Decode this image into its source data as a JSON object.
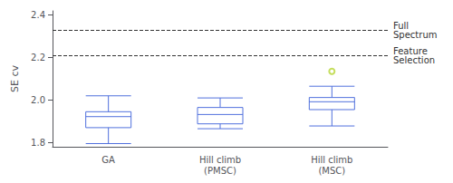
{
  "chart_data": {
    "type": "boxplot",
    "categories": [
      "GA",
      "Hill climb\n(PMSC)",
      "Hill climb\n(MSC)"
    ],
    "values": [
      [
        1.795,
        1.87,
        1.922,
        1.945,
        2.02
      ],
      [
        1.865,
        1.888,
        1.932,
        1.965,
        2.01
      ],
      [
        1.878,
        1.955,
        1.992,
        2.012,
        2.065
      ]
    ],
    "fliers": [
      [],
      [],
      [
        2.135
      ]
    ],
    "ylabel": "SE cv",
    "ylim": [
      1.78,
      2.42
    ],
    "yticks": [
      1.8,
      {
        "value": 2.0,
        "label": "2.0"
      },
      2.2,
      2.4
    ],
    "annotations": [
      {
        "y": 2.335,
        "text": "Full\nSpectrum"
      },
      {
        "y": 2.215,
        "text": "Feature\nSelection"
      }
    ],
    "grid": false
  }
}
